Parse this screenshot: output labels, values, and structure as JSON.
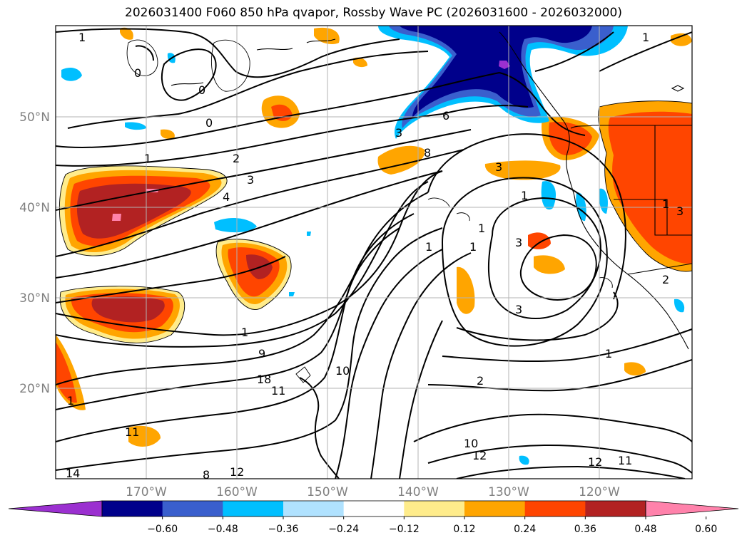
{
  "title": "2026031400 F060 850 hPa qvapor, Rossby Wave PC (2026031600 - 2026032000)",
  "map": {
    "lat_labels": [
      "50°N",
      "40°N",
      "30°N",
      "20°N"
    ],
    "lon_labels": [
      "170°W",
      "160°W",
      "150°W",
      "140°W",
      "130°W",
      "120°W"
    ],
    "label_color": "#808080"
  },
  "contour_labels": [
    "1",
    "0",
    "0",
    "1",
    "0",
    "2",
    "3",
    "4",
    "1",
    "9",
    "10",
    "18",
    "11",
    "11",
    "14",
    "8",
    "12",
    "12",
    "12",
    "10",
    "11",
    "1",
    "6",
    "8",
    "3",
    "3",
    "1",
    "1",
    "1",
    "3",
    "1",
    "1",
    "3",
    "2",
    "3",
    "2",
    "1",
    "1"
  ],
  "colorbar": {
    "ticks": [
      "−0.60",
      "−0.48",
      "−0.36",
      "−0.24",
      "−0.12",
      "0.12",
      "0.24",
      "0.36",
      "0.48",
      "0.60"
    ],
    "colors": [
      "#9b30d0",
      "#00008b",
      "#3a5fcd",
      "#00bfff",
      "#b0e2ff",
      "#ffffff",
      "#ffec8b",
      "#ffa500",
      "#ff4500",
      "#b22222",
      "#ff82ab"
    ]
  }
}
